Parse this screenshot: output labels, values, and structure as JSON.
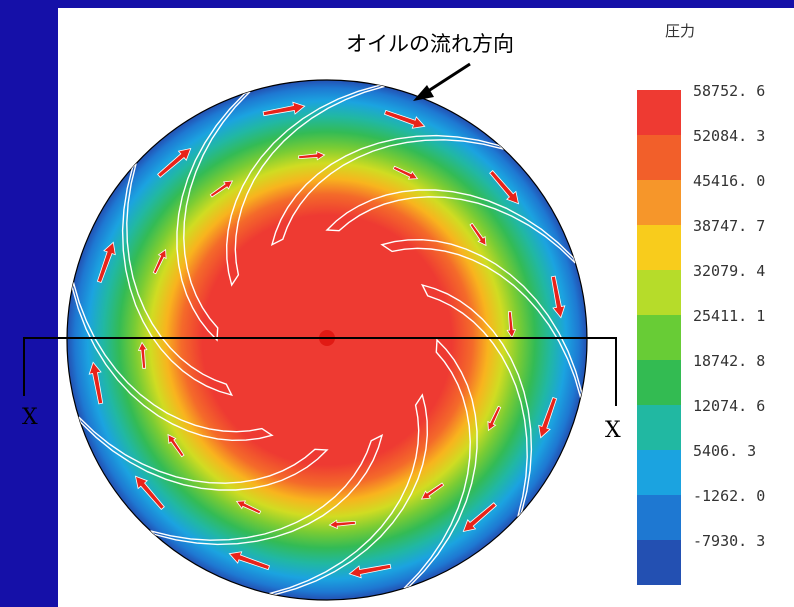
{
  "title": "圧力",
  "flow_label": "オイルの流れ方向",
  "section_marks": {
    "left": "X",
    "right": "X"
  },
  "legend": {
    "levels": [
      {
        "label": "58752. 6",
        "color": "#ee3a32"
      },
      {
        "label": "52084. 3",
        "color": "#f25f2a"
      },
      {
        "label": "45416. 0",
        "color": "#f6962a"
      },
      {
        "label": "38747. 7",
        "color": "#f8cc1c"
      },
      {
        "label": "32079. 4",
        "color": "#b6dc2a"
      },
      {
        "label": "25411. 1",
        "color": "#68cc36"
      },
      {
        "label": "18742. 8",
        "color": "#33bb52"
      },
      {
        "label": "12074. 6",
        "color": "#21b8a2"
      },
      {
        "label": "5406. 3",
        "color": "#1ba3e0"
      },
      {
        "label": "-1262. 0",
        "color": "#1e78d2"
      },
      {
        "label": "-7930. 3",
        "color": "#2350b2"
      }
    ]
  },
  "colors": {
    "background": "#1510a8",
    "panel": "#ffffff",
    "arrow": "#e8231a",
    "blade": "#ffffff"
  }
}
